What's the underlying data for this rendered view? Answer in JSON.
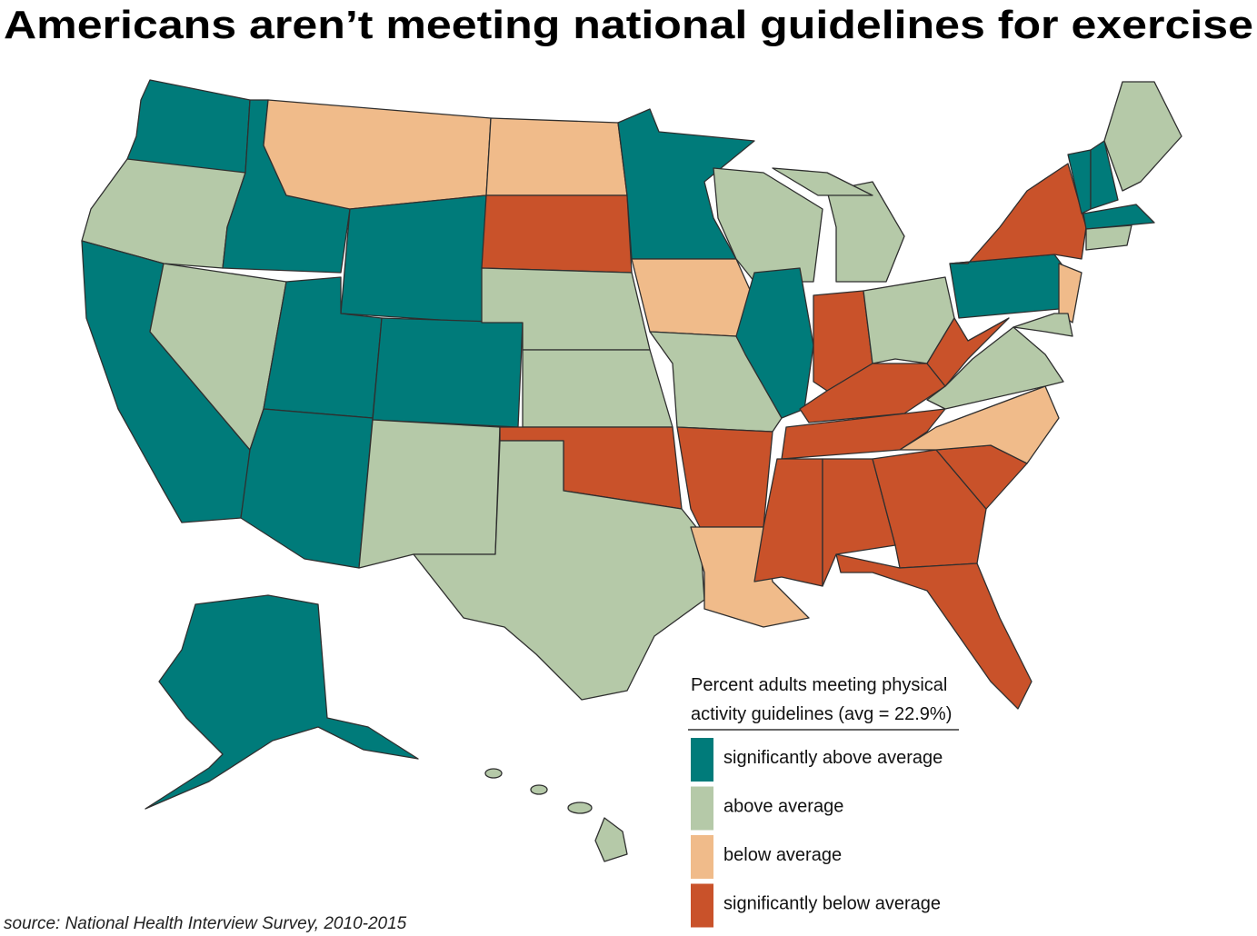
{
  "title": "Americans aren’t meeting national guidelines for exercise",
  "legend": {
    "title_lines": [
      "Percent adults meeting physical",
      "activity guidelines (avg = 22.9%)"
    ],
    "items": [
      {
        "label": "significantly above average",
        "color": "#007b7a"
      },
      {
        "label": "above average",
        "color": "#b5c9a8"
      },
      {
        "label": "below average",
        "color": "#f0bb8a"
      },
      {
        "label": "significantly below average",
        "color": "#c9522a"
      }
    ]
  },
  "source": "source: National Health Interview Survey, 2010-2015"
}
